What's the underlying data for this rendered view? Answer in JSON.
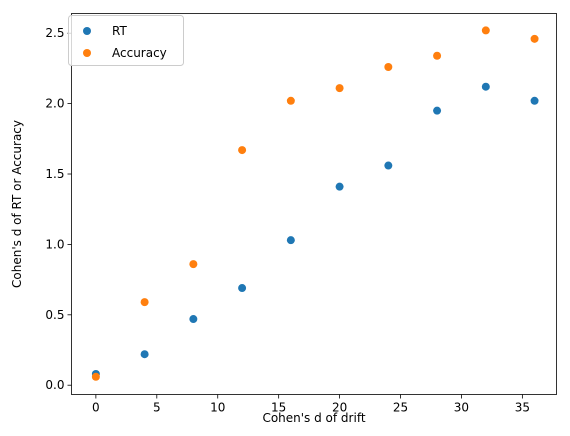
{
  "chart_data": {
    "type": "scatter",
    "title": "",
    "xlabel": "Cohen's d of drift",
    "ylabel": "Cohen's d of RT or Accuracy",
    "xlim": [
      -2.0,
      37.8
    ],
    "ylim": [
      -0.066,
      2.64
    ],
    "xticks": [
      0,
      5,
      10,
      15,
      20,
      25,
      30,
      35
    ],
    "yticks": [
      0.0,
      0.5,
      1.0,
      1.5,
      2.0,
      2.5
    ],
    "ytick_labels": [
      "0.0",
      "0.5",
      "1.0",
      "1.5",
      "2.0",
      "2.5"
    ],
    "grid": false,
    "legend_position": "top-left",
    "x": [
      0,
      4,
      8,
      12,
      16,
      20,
      24,
      28,
      32,
      36
    ],
    "series": [
      {
        "name": "RT",
        "color": "#1f77b4",
        "values": [
          0.08,
          0.22,
          0.47,
          0.69,
          1.03,
          1.41,
          1.56,
          1.95,
          2.12,
          2.02
        ]
      },
      {
        "name": "Accuracy",
        "color": "#ff7f0e",
        "values": [
          0.06,
          0.59,
          0.86,
          1.67,
          2.02,
          2.11,
          2.26,
          2.34,
          2.52,
          2.46
        ]
      }
    ]
  }
}
